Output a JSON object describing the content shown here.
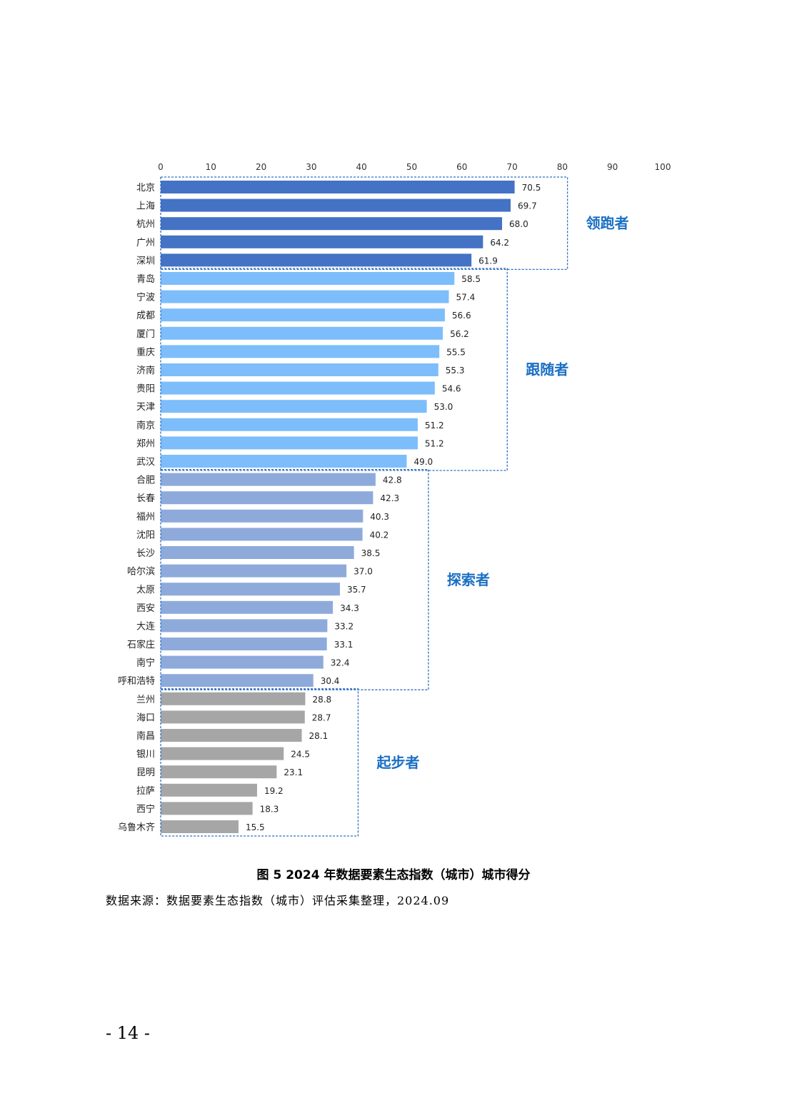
{
  "chart_data": {
    "type": "bar",
    "orientation": "horizontal",
    "xlim": [
      0,
      100
    ],
    "xticks": [
      0,
      10,
      20,
      30,
      40,
      50,
      60,
      70,
      80,
      90,
      100
    ],
    "colors": {
      "领跑者": "#4472c4",
      "跟随者": "#7dbdfb",
      "探索者": "#8eaadb",
      "起步者": "#a6a6a6",
      "group_label": "#1a6fc4"
    },
    "groups": [
      {
        "label": "领跑者",
        "cities": [
          "北京",
          "上海",
          "杭州",
          "广州",
          "深圳"
        ],
        "values": [
          70.5,
          69.7,
          68.0,
          64.2,
          61.9
        ]
      },
      {
        "label": "跟随者",
        "cities": [
          "青岛",
          "宁波",
          "成都",
          "厦门",
          "重庆",
          "济南",
          "贵阳",
          "天津",
          "南京",
          "郑州",
          "武汉"
        ],
        "values": [
          58.5,
          57.4,
          56.6,
          56.2,
          55.5,
          55.3,
          54.6,
          53.0,
          51.2,
          51.2,
          49.0
        ]
      },
      {
        "label": "探索者",
        "cities": [
          "合肥",
          "长春",
          "福州",
          "沈阳",
          "长沙",
          "哈尔滨",
          "太原",
          "西安",
          "大连",
          "石家庄",
          "南宁",
          "呼和浩特"
        ],
        "values": [
          42.8,
          42.3,
          40.3,
          40.2,
          38.5,
          37.0,
          35.7,
          34.3,
          33.2,
          33.1,
          32.4,
          30.4
        ]
      },
      {
        "label": "起步者",
        "cities": [
          "兰州",
          "海口",
          "南昌",
          "银川",
          "昆明",
          "拉萨",
          "西宁",
          "乌鲁木齐"
        ],
        "values": [
          28.8,
          28.7,
          28.1,
          24.5,
          23.1,
          19.2,
          18.3,
          15.5
        ]
      }
    ]
  },
  "caption": "图 5 2024 年数据要素生态指数（城市）城市得分",
  "source": "数据来源：数据要素生态指数（城市）评估采集整理，2024.09",
  "page_number": "- 14 -"
}
